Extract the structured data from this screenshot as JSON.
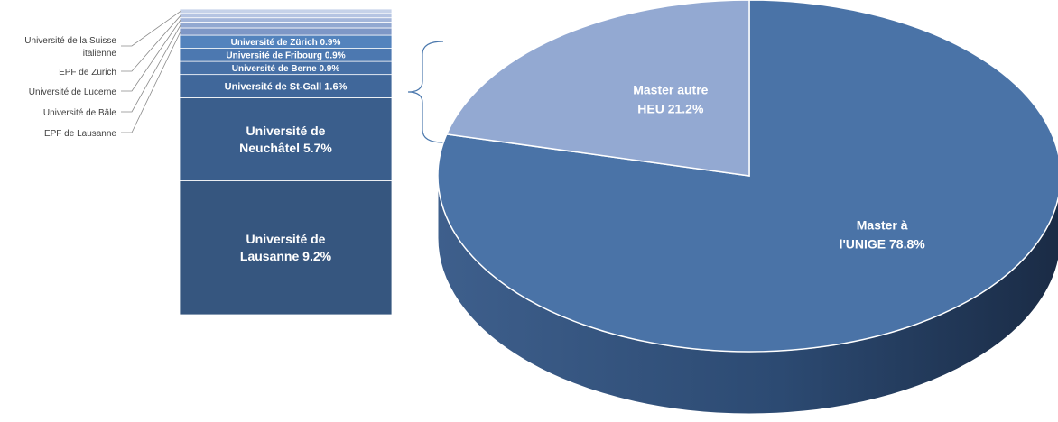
{
  "chart_data": [
    {
      "type": "bar",
      "stacked": true,
      "series": [
        {
          "name": "Université de Lausanne 9.2%",
          "lines": [
            "Université de",
            "Lausanne 9.2%"
          ],
          "value": 9.2,
          "color": "#36567f"
        },
        {
          "name": "Université de Neuchâtel 5.7%",
          "lines": [
            "Université de",
            "Neuchâtel 5.7%"
          ],
          "value": 5.7,
          "color": "#3a5e8c"
        },
        {
          "name": "Université de St-Gall 1.6%",
          "lines": [
            "Université de St-Gall 1.6%"
          ],
          "value": 1.6,
          "color": "#40679a"
        },
        {
          "name": "Université de Berne 0.9%",
          "lines": [
            "Université de Berne 0.9%"
          ],
          "value": 0.9,
          "color": "#4770a6"
        },
        {
          "name": "Université de Fribourg 0.9%",
          "lines": [
            "Université de Fribourg 0.9%"
          ],
          "value": 0.9,
          "color": "#4c78b0"
        },
        {
          "name": "Université de Zürich 0.9%",
          "lines": [
            "Université de Zürich 0.9%"
          ],
          "value": 0.9,
          "color": "#5383bd"
        },
        {
          "name": "EPF de Lausanne",
          "value": 0.5,
          "color": "#7e97c6",
          "external_label": true
        },
        {
          "name": "Université de Bâle",
          "value": 0.4,
          "color": "#92a8d1",
          "external_label": true
        },
        {
          "name": "Université de Lucerne",
          "value": 0.3,
          "color": "#a4b6da",
          "external_label": true
        },
        {
          "name": "EPF de Zürich",
          "value": 0.3,
          "color": "#b5c4e2",
          "external_label": true
        },
        {
          "name": "Université de la Suisse italienne",
          "lines": [
            "Université de la Suisse",
            "italienne"
          ],
          "value": 0.3,
          "color": "#c6d2e9",
          "external_label": true
        }
      ]
    },
    {
      "type": "pie",
      "style": "3d",
      "slices": [
        {
          "name": "Master à l'UNIGE 78.8%",
          "lines": [
            "Master à",
            "l'UNIGE 78.8%"
          ],
          "value": 78.8,
          "color": "#4a73a7",
          "side_color": "#2a4468"
        },
        {
          "name": "Master autre HEU 21.2%",
          "lines": [
            "Master autre",
            "HEU 21.2%"
          ],
          "value": 21.2,
          "color": "#93a9d2",
          "side_color": "#6f86b3"
        }
      ]
    }
  ]
}
